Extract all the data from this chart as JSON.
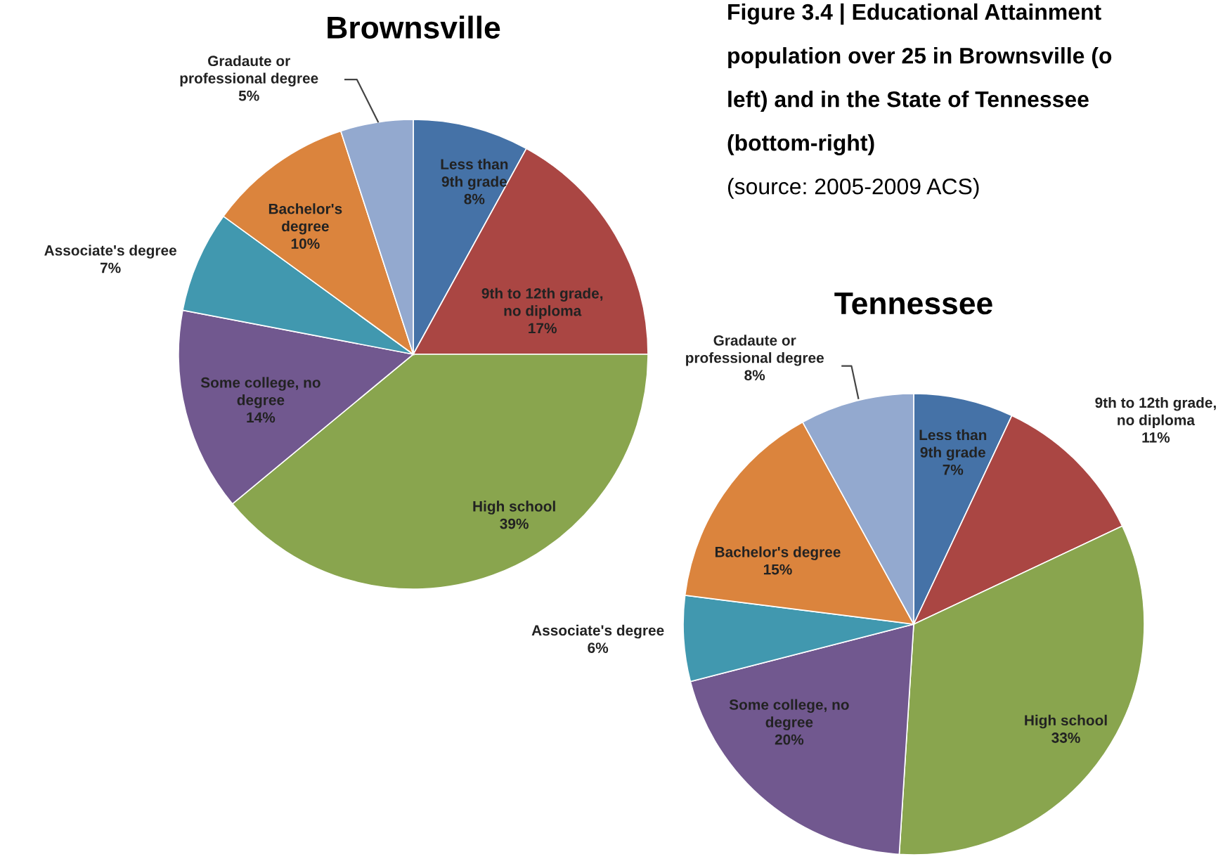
{
  "chart_data": [
    {
      "type": "pie",
      "title": "Brownsville",
      "categories": [
        "Less than 9th grade",
        "9th to 12th grade, no diploma",
        "High school",
        "Some college, no degree",
        "Associate's degree",
        "Bachelor's degree",
        "Gradaute or professional degree"
      ],
      "values": [
        8,
        17,
        39,
        14,
        7,
        10,
        5
      ],
      "value_labels": [
        "8%",
        "17%",
        "39%",
        "14%",
        "7%",
        "10%",
        "5%"
      ],
      "colors": [
        "#4572a7",
        "#aa4643",
        "#89a54e",
        "#71588f",
        "#4198af",
        "#db843d",
        "#93a9cf"
      ],
      "data_labels": true,
      "annotations": [
        "Figure 3.4 | Educational Attainment",
        "population over 25 in Brownsville (o",
        "left) and in the State of Tennessee",
        "(bottom-right)",
        "(source: 2005-2009 ACS)"
      ]
    },
    {
      "type": "pie",
      "title": "Tennessee",
      "categories": [
        "Less than 9th grade",
        "9th to 12th grade, no diploma",
        "High school",
        "Some college, no degree",
        "Associate's degree",
        "Bachelor's degree",
        "Gradaute or professional degree"
      ],
      "values": [
        7,
        11,
        33,
        20,
        6,
        15,
        8
      ],
      "value_labels": [
        "7%",
        "11%",
        "33%",
        "20%",
        "6%",
        "15%",
        "8%"
      ],
      "colors": [
        "#4572a7",
        "#aa4643",
        "#89a54e",
        "#71588f",
        "#4198af",
        "#db843d",
        "#93a9cf"
      ],
      "data_labels": true
    }
  ]
}
